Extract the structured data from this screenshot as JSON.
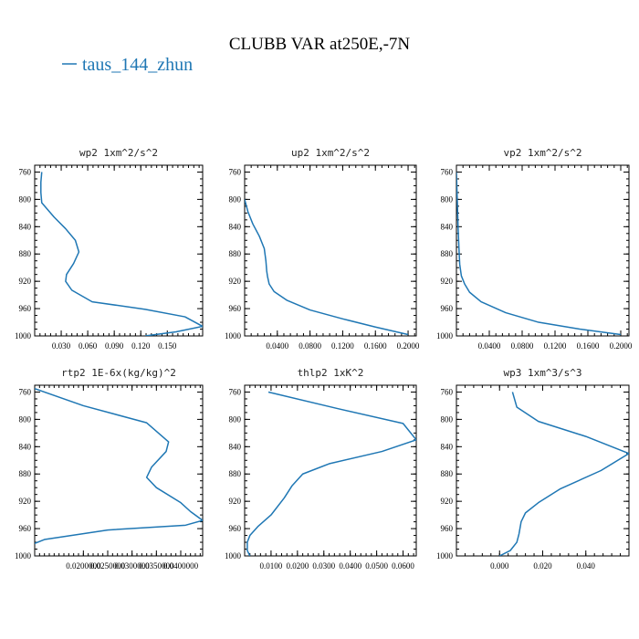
{
  "figure": {
    "title": "CLUBB VAR at250E,-7N",
    "legend": {
      "label": "taus_144_zhun",
      "color": "#1f77b4"
    }
  },
  "chart_data": [
    {
      "type": "line",
      "title": "wp2  1xm^2/s^2",
      "xlim": [
        0.0,
        0.19
      ],
      "ylim": [
        1000,
        750
      ],
      "xticks": [
        0.03,
        0.06,
        0.09,
        0.12,
        0.15
      ],
      "xtick_labels": [
        "0.030",
        "0.060",
        "0.090",
        "0.120",
        "0.150"
      ],
      "yticks": [
        760,
        800,
        840,
        880,
        920,
        960,
        1000
      ],
      "series": [
        {
          "color": "#1f77b4",
          "x": [
            0.008,
            0.007,
            0.007,
            0.008,
            0.022,
            0.035,
            0.046,
            0.05,
            0.044,
            0.036,
            0.035,
            0.042,
            0.065,
            0.125,
            0.17,
            0.19,
            0.16,
            0.125
          ],
          "y": [
            760,
            775,
            790,
            805,
            826,
            843,
            860,
            877,
            894,
            910,
            920,
            933,
            950,
            961,
            972,
            986,
            994,
            1000
          ]
        }
      ]
    },
    {
      "type": "line",
      "title": "up2  1xm^2/s^2",
      "xlim": [
        0.0,
        0.21
      ],
      "ylim": [
        1000,
        750
      ],
      "xticks": [
        0.04,
        0.08,
        0.12,
        0.16,
        0.2
      ],
      "xtick_labels": [
        "0.0400",
        "0.0800",
        "0.1200",
        "0.1600",
        "0.2000"
      ],
      "yticks": [
        760,
        800,
        840,
        880,
        920,
        960,
        1000
      ],
      "series": [
        {
          "color": "#1f77b4",
          "x": [
            0.0,
            0.004,
            0.01,
            0.018,
            0.024,
            0.026,
            0.027,
            0.028,
            0.03,
            0.036,
            0.052,
            0.08,
            0.12,
            0.16,
            0.2
          ],
          "y": [
            800,
            818,
            836,
            854,
            872,
            890,
            905,
            913,
            924,
            935,
            948,
            962,
            975,
            987,
            998
          ]
        }
      ]
    },
    {
      "type": "line",
      "title": "vp2  1xm^2/s^2",
      "xlim": [
        0.0,
        0.21
      ],
      "ylim": [
        1000,
        750
      ],
      "xticks": [
        0.04,
        0.08,
        0.12,
        0.16,
        0.2
      ],
      "xtick_labels": [
        "0.0400",
        "0.0800",
        "0.1200",
        "0.1600",
        "0.2000"
      ],
      "yticks": [
        760,
        800,
        840,
        880,
        920,
        960,
        1000
      ],
      "series": [
        {
          "color": "#1f77b4",
          "x": [
            0.0,
            0.001,
            0.002,
            0.003,
            0.004,
            0.006,
            0.01,
            0.016,
            0.03,
            0.06,
            0.1,
            0.15,
            0.2
          ],
          "y": [
            760,
            800,
            840,
            870,
            895,
            912,
            924,
            936,
            950,
            966,
            980,
            990,
            998
          ]
        }
      ]
    },
    {
      "type": "line",
      "title": "rtp2  1E-6x(kg/kg)^2",
      "xlim": [
        0.01,
        0.0445
      ],
      "ylim": [
        1000,
        750
      ],
      "xticks": [
        0.02,
        0.025,
        0.03,
        0.035,
        0.04
      ],
      "xtick_labels": [
        "0.0200000",
        "0.0250000",
        "0.0300000",
        "0.0350000",
        "0.0400000"
      ],
      "yticks": [
        760,
        800,
        840,
        880,
        920,
        960,
        1000
      ],
      "series": [
        {
          "color": "#1f77b4",
          "x": [
            0.01,
            0.02,
            0.033,
            0.0375,
            0.037,
            0.034,
            0.033,
            0.035,
            0.04,
            0.042,
            0.0445,
            0.041,
            0.025,
            0.012,
            0.0085,
            0.008,
            0.01
          ],
          "y": [
            755,
            780,
            805,
            833,
            847,
            870,
            885,
            900,
            922,
            935,
            948,
            955,
            962,
            976,
            986,
            994,
            1000
          ]
        }
      ]
    },
    {
      "type": "line",
      "title": "thlp2  1xK^2",
      "xlim": [
        0.0,
        0.065
      ],
      "ylim": [
        1000,
        750
      ],
      "xticks": [
        0.01,
        0.02,
        0.03,
        0.04,
        0.05,
        0.06
      ],
      "xtick_labels": [
        "0.0100",
        "0.0200",
        "0.0300",
        "0.0400",
        "0.0500",
        "0.0600"
      ],
      "yticks": [
        760,
        800,
        840,
        880,
        920,
        960,
        1000
      ],
      "series": [
        {
          "color": "#1f77b4",
          "x": [
            0.009,
            0.035,
            0.06,
            0.065,
            0.052,
            0.032,
            0.022,
            0.018,
            0.015,
            0.01,
            0.005,
            0.002,
            0.001,
            0.001,
            0.002
          ],
          "y": [
            760,
            784,
            806,
            830,
            847,
            865,
            880,
            897,
            915,
            940,
            957,
            970,
            980,
            992,
            1000
          ]
        }
      ]
    },
    {
      "type": "line",
      "title": "wp3  1xm^3/s^3",
      "xlim": [
        -0.02,
        0.06
      ],
      "ylim": [
        1000,
        750
      ],
      "xticks": [
        0.0,
        0.02,
        0.04
      ],
      "xtick_labels": [
        "0.000",
        "0.020",
        "0.040"
      ],
      "yticks": [
        760,
        800,
        840,
        880,
        920,
        960,
        1000
      ],
      "series": [
        {
          "color": "#1f77b4",
          "x": [
            0.006,
            0.008,
            0.018,
            0.04,
            0.06,
            0.047,
            0.028,
            0.018,
            0.012,
            0.01,
            0.009,
            0.008,
            0.005,
            0.0
          ],
          "y": [
            760,
            782,
            803,
            825,
            850,
            875,
            902,
            922,
            937,
            950,
            968,
            980,
            992,
            1000
          ]
        }
      ]
    }
  ]
}
